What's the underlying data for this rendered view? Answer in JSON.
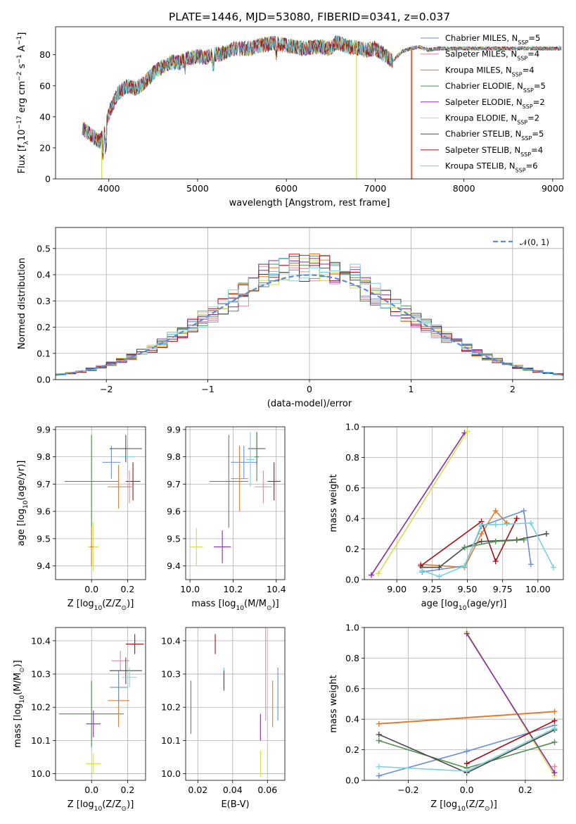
{
  "figure": {
    "title": "PLATE=1446, MJD=53080, FIBERID=0341, z=0.037"
  },
  "colors": {
    "chabrier_miles": "#6a8fd6",
    "salpeter_miles": "#e287a6",
    "kroupa_miles": "#e07b2e",
    "chabrier_elodie": "#4f8f4f",
    "salpeter_elodie": "#8a2aa8",
    "kroupa_elodie": "#d2e04a",
    "chabrier_stelib": "#4a4a4a",
    "salpeter_stelib": "#a50f15",
    "kroupa_stelib": "#76d4dc",
    "gauss": "#5b8bd6"
  },
  "chart_data": [
    {
      "id": "spectrum",
      "type": "line",
      "xlabel": "wavelength [Angstrom, rest frame]",
      "ylabel": "Flux [f",
      "ylabel_sub": "λ",
      "ylabel_rest": "10",
      "ylabel_sup": "−17",
      "ylabel_tail": " erg cm",
      "ylabel_sup2": "−2",
      "ylabel_tail2": " s",
      "ylabel_sup3": "−1",
      "ylabel_tail3": " A",
      "ylabel_sup4": "−1",
      "ylabel_end": "]",
      "xlim": [
        3400,
        9120
      ],
      "ylim": [
        0,
        98
      ],
      "xticks": [
        4000,
        5000,
        6000,
        7000,
        8000,
        9000
      ],
      "yticks": [
        0,
        20,
        40,
        60,
        80
      ],
      "x_range": [
        3700,
        9100
      ],
      "legend_position": "upper-right",
      "legend": [
        {
          "label": "Chabrier MILES, N",
          "sub": "SSP",
          "tail": "=5",
          "color_key": "chabrier_miles"
        },
        {
          "label": "Salpeter MILES, N",
          "sub": "SSP",
          "tail": "=4",
          "color_key": "salpeter_miles"
        },
        {
          "label": "Kroupa MILES, N",
          "sub": "SSP",
          "tail": "=4",
          "color_key": "kroupa_miles"
        },
        {
          "label": "Chabrier ELODIE, N",
          "sub": "SSP",
          "tail": "=5",
          "color_key": "chabrier_elodie"
        },
        {
          "label": "Salpeter ELODIE, N",
          "sub": "SSP",
          "tail": "=2",
          "color_key": "salpeter_elodie"
        },
        {
          "label": "Kroupa ELODIE, N",
          "sub": "SSP",
          "tail": "=2",
          "color_key": "kroupa_elodie"
        },
        {
          "label": "Chabrier STELIB, N",
          "sub": "SSP",
          "tail": "=5",
          "color_key": "chabrier_stelib"
        },
        {
          "label": "Salpeter STELIB, N",
          "sub": "SSP",
          "tail": "=4",
          "color_key": "salpeter_stelib"
        },
        {
          "label": "Kroupa STELIB, N",
          "sub": "SSP",
          "tail": "=6",
          "color_key": "kroupa_stelib"
        }
      ],
      "continuum": [
        [
          3700,
          33
        ],
        [
          3800,
          28
        ],
        [
          3900,
          24
        ],
        [
          3950,
          30
        ],
        [
          4000,
          42
        ],
        [
          4100,
          55
        ],
        [
          4200,
          60
        ],
        [
          4300,
          58
        ],
        [
          4400,
          62
        ],
        [
          4500,
          68
        ],
        [
          4600,
          72
        ],
        [
          4700,
          75
        ],
        [
          4800,
          75
        ],
        [
          4900,
          78
        ],
        [
          5000,
          79
        ],
        [
          5100,
          78
        ],
        [
          5200,
          80
        ],
        [
          5300,
          81
        ],
        [
          5400,
          84
        ],
        [
          5500,
          84
        ],
        [
          5600,
          84
        ],
        [
          5700,
          86
        ],
        [
          5800,
          87
        ],
        [
          5900,
          87
        ],
        [
          6000,
          86
        ],
        [
          6100,
          85
        ],
        [
          6200,
          84
        ],
        [
          6300,
          85
        ],
        [
          6400,
          85
        ],
        [
          6500,
          84
        ],
        [
          6563,
          88
        ],
        [
          6700,
          85
        ],
        [
          6800,
          84
        ],
        [
          6900,
          83
        ],
        [
          7000,
          84
        ],
        [
          7100,
          80
        ],
        [
          7200,
          76
        ],
        [
          7300,
          82
        ],
        [
          7400,
          84
        ],
        [
          7500,
          85
        ],
        [
          7600,
          83
        ],
        [
          7700,
          84
        ],
        [
          7800,
          84
        ],
        [
          7900,
          84
        ],
        [
          8000,
          84
        ],
        [
          8200,
          84
        ],
        [
          8400,
          84
        ],
        [
          8600,
          84
        ],
        [
          8800,
          84
        ],
        [
          9000,
          84
        ],
        [
          9100,
          84
        ]
      ],
      "dropouts": [
        {
          "x": 3920,
          "y": 0,
          "color_key": "kroupa_elodie"
        },
        {
          "x": 6790,
          "y": 0,
          "color_key": "kroupa_elodie"
        },
        {
          "x": 7410,
          "y": 0,
          "color_key": "salpeter_stelib"
        },
        {
          "x": 7415,
          "y": 0,
          "color_key": "kroupa_miles"
        }
      ]
    },
    {
      "id": "residuals",
      "type": "histogram",
      "xlabel": "(data-model)/error",
      "ylabel": "Normed distribution",
      "xlim": [
        -2.5,
        2.5
      ],
      "ylim": [
        0,
        0.58
      ],
      "xticks": [
        -2,
        -1,
        0,
        1,
        2
      ],
      "yticks": [
        0.0,
        0.1,
        0.2,
        0.3,
        0.4,
        0.5
      ],
      "legend": [
        {
          "label": "𝒩(0, 1)",
          "color_key": "gauss",
          "style": "dashed"
        }
      ],
      "legend_position": "upper-right",
      "bin_width": 0.1
    },
    {
      "id": "age-vs-Z",
      "type": "errorbar",
      "xlabel": "Z [log",
      "xlabel_sub": "10",
      "xlabel_rest": "(Z/Z",
      "xlabel_sub2": "⊙",
      "xlabel_end": ")]",
      "ylabel": "age  [log",
      "ylabel_sub": "10",
      "ylabel_rest": "(age/yr)]",
      "xlim": [
        -0.2,
        0.3
      ],
      "ylim": [
        9.35,
        9.91
      ],
      "xticks": [
        0.0,
        0.2
      ],
      "yticks": [
        9.4,
        9.5,
        9.6,
        9.7,
        9.8,
        9.9
      ],
      "points": [
        {
          "x": 0.0,
          "y": 9.71,
          "xerr": 0.15,
          "yerr": 0.17,
          "color_key": "chabrier_elodie"
        },
        {
          "x": 0.11,
          "y": 9.78,
          "xerr": 0.05,
          "yerr": 0.06,
          "color_key": "chabrier_miles"
        },
        {
          "x": 0.15,
          "y": 9.69,
          "xerr": 0.06,
          "yerr": 0.08,
          "color_key": "kroupa_miles"
        },
        {
          "x": 0.2,
          "y": 9.8,
          "xerr": 0.04,
          "yerr": 0.07,
          "color_key": "kroupa_stelib"
        },
        {
          "x": 0.19,
          "y": 9.83,
          "xerr": 0.09,
          "yerr": 0.05,
          "color_key": "chabrier_stelib"
        },
        {
          "x": 0.23,
          "y": 9.71,
          "xerr": 0.04,
          "yerr": 0.07,
          "color_key": "salpeter_stelib"
        },
        {
          "x": 0.21,
          "y": 9.69,
          "xerr": 0.02,
          "yerr": 0.06,
          "color_key": "salpeter_miles"
        },
        {
          "x": 0.01,
          "y": 9.47,
          "xerr": 0.03,
          "yerr": 0.09,
          "color_key": "kroupa_elodie"
        },
        {
          "x": 0.0,
          "y": 9.47,
          "xerr": 0.01,
          "yerr": 0.07,
          "color_key": "kroupa_miles"
        }
      ]
    },
    {
      "id": "age-vs-mass",
      "type": "errorbar",
      "xlabel": "mass [log",
      "xlabel_sub": "10",
      "xlabel_rest": "(M/M",
      "xlabel_sub2": "⊙",
      "xlabel_end": ")]",
      "xlim": [
        9.98,
        10.44
      ],
      "ylim": [
        9.35,
        9.91
      ],
      "xticks": [
        10.0,
        10.2,
        10.4
      ],
      "yticks": [
        9.4,
        9.5,
        9.6,
        9.7,
        9.8,
        9.9
      ],
      "points": [
        {
          "x": 10.18,
          "y": 9.71,
          "xerr": 0.09,
          "yerr": 0.17,
          "color_key": "chabrier_elodie"
        },
        {
          "x": 10.25,
          "y": 9.78,
          "xerr": 0.06,
          "yerr": 0.06,
          "color_key": "chabrier_miles"
        },
        {
          "x": 10.23,
          "y": 9.72,
          "xerr": 0.04,
          "yerr": 0.12,
          "color_key": "kroupa_miles"
        },
        {
          "x": 10.31,
          "y": 9.83,
          "xerr": 0.04,
          "yerr": 0.06,
          "color_key": "chabrier_stelib"
        },
        {
          "x": 10.28,
          "y": 9.79,
          "xerr": 0.02,
          "yerr": 0.1,
          "color_key": "kroupa_stelib"
        },
        {
          "x": 10.34,
          "y": 9.69,
          "xerr": 0.04,
          "yerr": 0.06,
          "color_key": "salpeter_miles"
        },
        {
          "x": 10.39,
          "y": 9.71,
          "xerr": 0.03,
          "yerr": 0.07,
          "color_key": "salpeter_stelib"
        },
        {
          "x": 10.15,
          "y": 9.47,
          "xerr": 0.04,
          "yerr": 0.06,
          "color_key": "salpeter_elodie"
        },
        {
          "x": 10.03,
          "y": 9.47,
          "xerr": 0.03,
          "yerr": 0.07,
          "color_key": "kroupa_elodie"
        },
        {
          "x": 10.31,
          "y": 9.8,
          "xerr": 0.01,
          "yerr": 0.09,
          "color_key": "chabrier_elodie"
        }
      ]
    },
    {
      "id": "weight-vs-age",
      "type": "line",
      "xlabel": "age  [log",
      "xlabel_sub": "10",
      "xlabel_rest": "(age/yr)]",
      "ylabel": "mass weight",
      "xlim": [
        8.77,
        10.18
      ],
      "ylim": [
        0.0,
        1.0
      ],
      "xticks": [
        9.0,
        9.25,
        9.5,
        9.75,
        10.0
      ],
      "xtick_labels": [
        "9.00",
        "9.25",
        "9.50",
        "9.75",
        "10.00"
      ],
      "yticks": [
        0.0,
        0.2,
        0.4,
        0.6,
        0.8,
        1.0
      ],
      "series": [
        {
          "color_key": "salpeter_elodie",
          "x": [
            8.82,
            9.48
          ],
          "y": [
            0.03,
            0.96
          ]
        },
        {
          "color_key": "kroupa_elodie",
          "x": [
            8.87,
            9.5
          ],
          "y": [
            0.04,
            0.97
          ]
        },
        {
          "color_key": "kroupa_miles",
          "x": [
            9.17,
            9.48,
            9.6,
            9.7,
            9.78
          ],
          "y": [
            0.1,
            0.08,
            0.3,
            0.45,
            0.37
          ]
        },
        {
          "color_key": "chabrier_miles",
          "x": [
            9.18,
            9.48,
            9.6,
            9.9,
            9.95
          ],
          "y": [
            0.05,
            0.09,
            0.35,
            0.45,
            0.1
          ]
        },
        {
          "color_key": "salpeter_stelib",
          "x": [
            9.17,
            9.6,
            9.7,
            9.85
          ],
          "y": [
            0.09,
            0.38,
            0.12,
            0.4
          ]
        },
        {
          "color_key": "chabrier_stelib",
          "x": [
            9.18,
            9.3,
            9.48,
            9.6,
            9.85,
            10.06
          ],
          "y": [
            0.08,
            0.08,
            0.21,
            0.25,
            0.26,
            0.3
          ]
        },
        {
          "color_key": "chabrier_elodie",
          "x": [
            9.48,
            9.7,
            9.9
          ],
          "y": [
            0.21,
            0.25,
            0.26
          ]
        },
        {
          "color_key": "kroupa_stelib",
          "x": [
            9.18,
            9.3,
            9.48,
            9.6,
            9.7,
            9.95,
            10.11
          ],
          "y": [
            0.06,
            0.02,
            0.09,
            0.36,
            0.36,
            0.37,
            0.08
          ]
        }
      ]
    },
    {
      "id": "mass-vs-Z",
      "type": "errorbar",
      "xlabel": "Z [log",
      "xlabel_sub": "10",
      "xlabel_rest": "(Z/Z",
      "xlabel_sub2": "⊙",
      "xlabel_end": ")]",
      "ylabel": "mass [log",
      "ylabel_sub": "10",
      "ylabel_rest": "(M/M",
      "ylabel_sub2": "⊙",
      "ylabel_end": ")]",
      "xlim": [
        -0.2,
        0.3
      ],
      "ylim": [
        9.98,
        10.44
      ],
      "xticks": [
        0.0,
        0.2
      ],
      "yticks": [
        10.0,
        10.1,
        10.2,
        10.3,
        10.4
      ],
      "points": [
        {
          "x": 0.0,
          "y": 10.18,
          "xerr": 0.18,
          "yerr": 0.1,
          "color_key": "chabrier_elodie"
        },
        {
          "x": 0.01,
          "y": 10.15,
          "xerr": 0.04,
          "yerr": 0.04,
          "color_key": "salpeter_elodie"
        },
        {
          "x": 0.01,
          "y": 10.03,
          "xerr": 0.04,
          "yerr": 0.03,
          "color_key": "kroupa_elodie"
        },
        {
          "x": 0.15,
          "y": 10.22,
          "xerr": 0.06,
          "yerr": 0.08,
          "color_key": "kroupa_miles"
        },
        {
          "x": 0.15,
          "y": 10.26,
          "xerr": 0.05,
          "yerr": 0.05,
          "color_key": "chabrier_miles"
        },
        {
          "x": 0.16,
          "y": 10.34,
          "xerr": 0.05,
          "yerr": 0.03,
          "color_key": "salpeter_miles"
        },
        {
          "x": 0.19,
          "y": 10.31,
          "xerr": 0.09,
          "yerr": 0.04,
          "color_key": "chabrier_stelib"
        },
        {
          "x": 0.21,
          "y": 10.29,
          "xerr": 0.04,
          "yerr": 0.03,
          "color_key": "kroupa_stelib"
        },
        {
          "x": 0.24,
          "y": 10.39,
          "xerr": 0.05,
          "yerr": 0.03,
          "color_key": "salpeter_stelib"
        }
      ]
    },
    {
      "id": "mass-vs-ebv",
      "type": "errorbar",
      "xlabel": "E(B-V)",
      "xlim": [
        0.013,
        0.07
      ],
      "ylim": [
        9.98,
        10.44
      ],
      "xticks": [
        0.02,
        0.04,
        0.06
      ],
      "yticks": [
        10.0,
        10.1,
        10.2,
        10.3,
        10.4
      ],
      "points": [
        {
          "x": 0.016,
          "y": 10.2,
          "xerr": 0.0,
          "yerr": 0.08,
          "color_key": "chabrier_elodie"
        },
        {
          "x": 0.03,
          "y": 10.39,
          "xerr": 0.0,
          "yerr": 0.03,
          "color_key": "salpeter_stelib"
        },
        {
          "x": 0.035,
          "y": 10.29,
          "xerr": 0.0,
          "yerr": 0.03,
          "color_key": "kroupa_stelib"
        },
        {
          "x": 0.035,
          "y": 10.28,
          "xerr": 0.0,
          "yerr": 0.03,
          "color_key": "chabrier_stelib"
        },
        {
          "x": 0.056,
          "y": 10.14,
          "xerr": 0.0,
          "yerr": 0.04,
          "color_key": "salpeter_elodie"
        },
        {
          "x": 0.056,
          "y": 10.03,
          "xerr": 0.0,
          "yerr": 0.04,
          "color_key": "kroupa_elodie"
        },
        {
          "x": 0.059,
          "y": 10.3,
          "xerr": 0.0,
          "yerr": 0.14,
          "color_key": "salpeter_miles"
        },
        {
          "x": 0.063,
          "y": 10.21,
          "xerr": 0.0,
          "yerr": 0.07,
          "color_key": "kroupa_miles"
        },
        {
          "x": 0.066,
          "y": 10.24,
          "xerr": 0.0,
          "yerr": 0.08,
          "color_key": "chabrier_miles"
        }
      ]
    },
    {
      "id": "weight-vs-Z",
      "type": "line",
      "xlabel": "Z [log",
      "xlabel_sub": "10",
      "xlabel_rest": "(Z/Z",
      "xlabel_sub2": "⊙",
      "xlabel_end": ")]",
      "ylabel": "mass weight",
      "xlim": [
        -0.35,
        0.33
      ],
      "ylim": [
        0.0,
        1.0
      ],
      "xticks": [
        -0.2,
        0.0,
        0.2
      ],
      "yticks": [
        0.0,
        0.2,
        0.4,
        0.6,
        0.8,
        1.0
      ],
      "series": [
        {
          "color_key": "kroupa_miles",
          "x": [
            -0.3,
            0.3
          ],
          "y": [
            0.37,
            0.45
          ],
          "width": 2
        },
        {
          "color_key": "kroupa_elodie",
          "x": [
            0.0,
            0.3
          ],
          "y": [
            0.97,
            0.03
          ]
        },
        {
          "color_key": "salpeter_elodie",
          "x": [
            0.0,
            0.3
          ],
          "y": [
            0.96,
            0.05
          ]
        },
        {
          "color_key": "chabrier_miles",
          "x": [
            -0.3,
            0.0,
            0.3
          ],
          "y": [
            0.03,
            0.19,
            0.36
          ]
        },
        {
          "color_key": "chabrier_elodie",
          "x": [
            -0.3,
            0.0,
            0.3
          ],
          "y": [
            0.26,
            0.08,
            0.25
          ]
        },
        {
          "color_key": "chabrier_stelib",
          "x": [
            -0.3,
            0.0,
            0.3
          ],
          "y": [
            0.3,
            0.05,
            0.33
          ]
        },
        {
          "color_key": "salpeter_stelib",
          "x": [
            0.0,
            0.3
          ],
          "y": [
            0.11,
            0.39
          ]
        },
        {
          "color_key": "kroupa_stelib",
          "x": [
            -0.3,
            0.0,
            0.3
          ],
          "y": [
            0.09,
            0.06,
            0.34
          ]
        },
        {
          "color_key": "salpeter_miles",
          "x": [
            0.3,
            0.3
          ],
          "y": [
            0.09,
            0.09
          ]
        }
      ]
    }
  ]
}
